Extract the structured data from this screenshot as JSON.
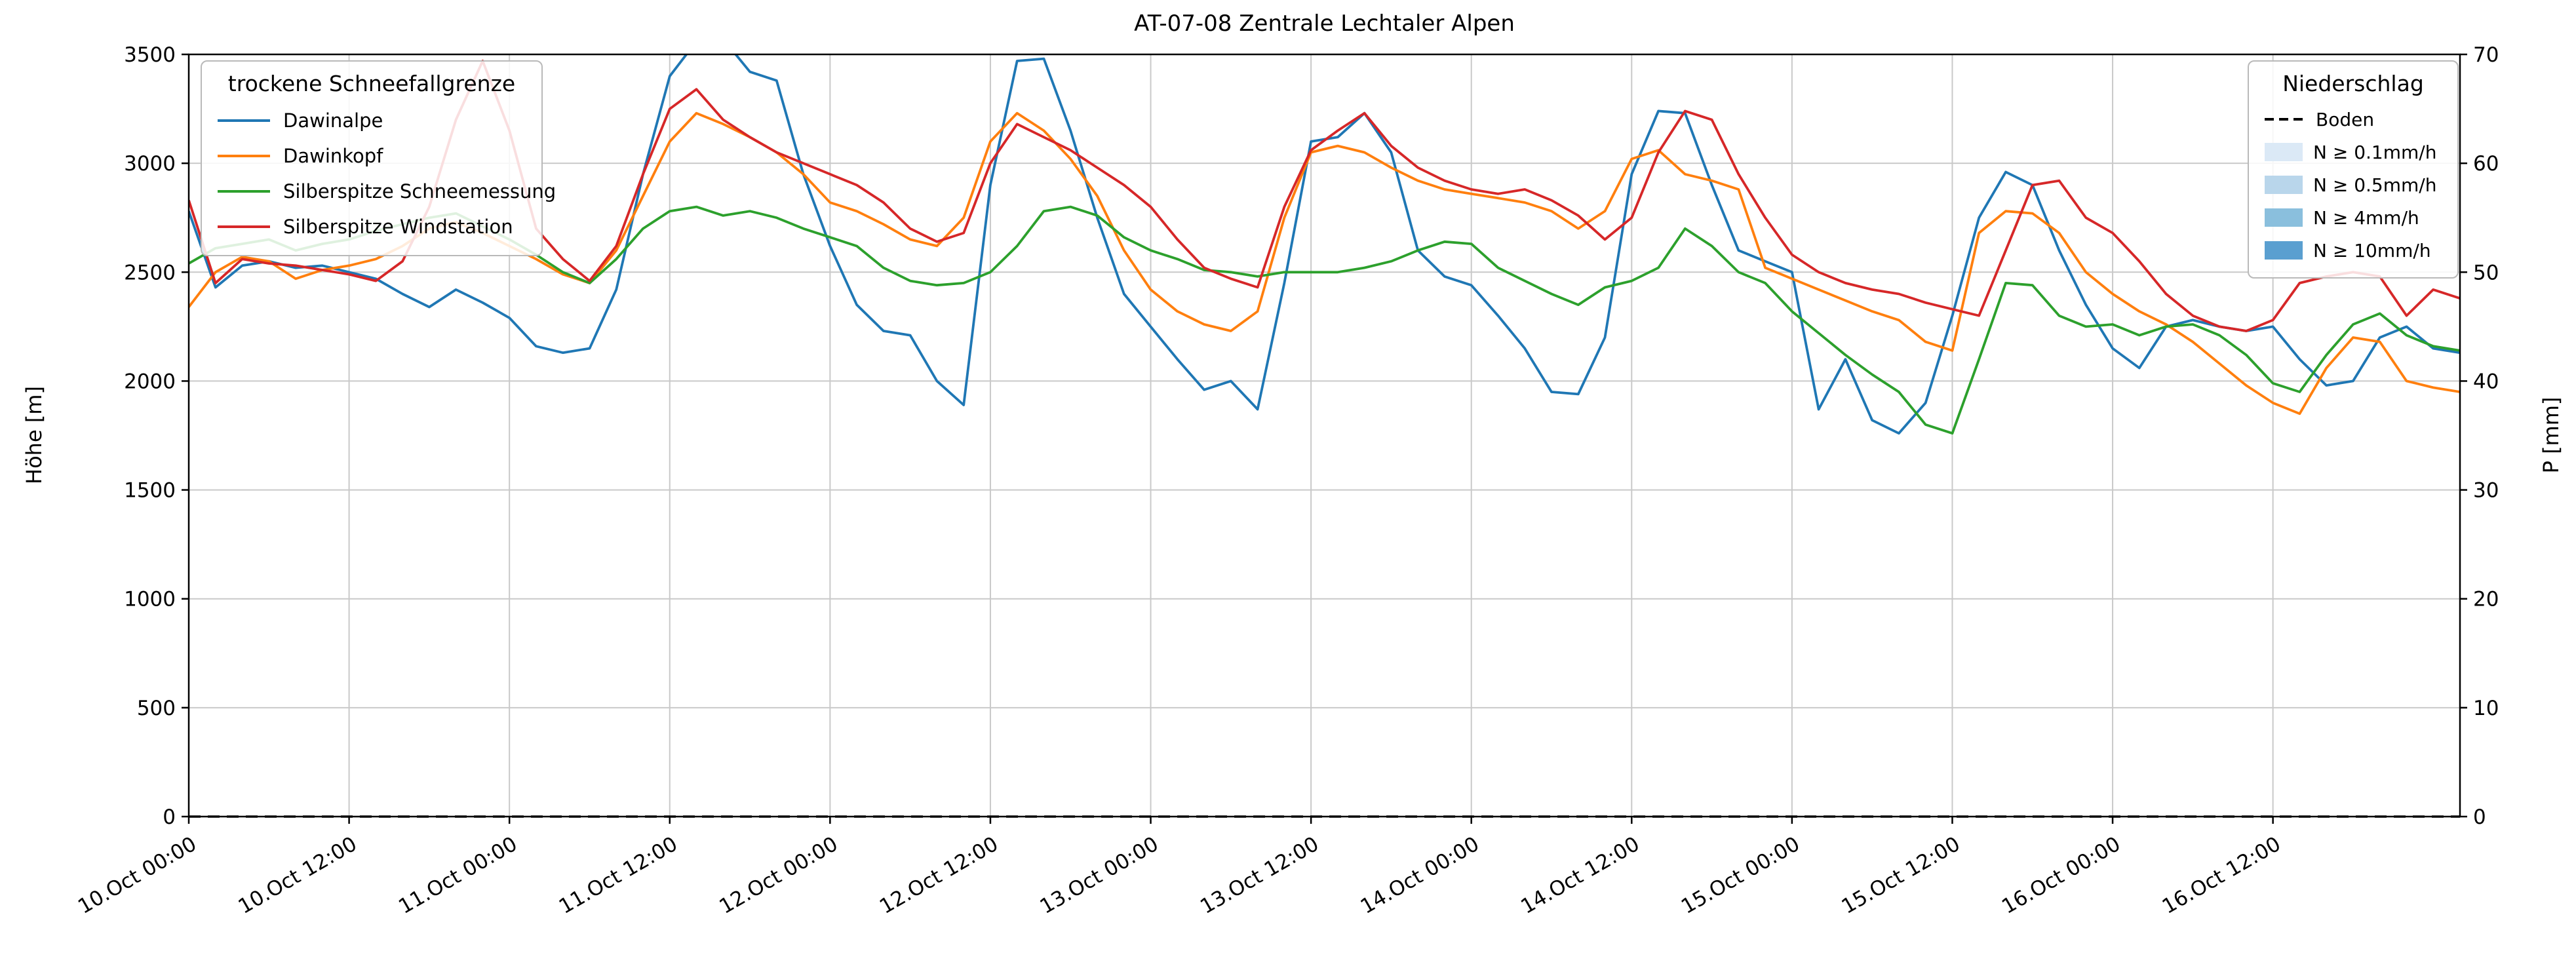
{
  "chart_data": {
    "type": "line",
    "title": "AT-07-08 Zentrale Lechtaler Alpen",
    "x_axis": {
      "range_hours": [
        0,
        170
      ],
      "tick_hours": [
        0,
        12,
        24,
        36,
        48,
        60,
        72,
        84,
        96,
        108,
        120,
        132,
        144,
        156
      ],
      "tick_labels": [
        "10.Oct 00:00",
        "10.Oct 12:00",
        "11.Oct 00:00",
        "11.Oct 12:00",
        "12.Oct 00:00",
        "12.Oct 12:00",
        "13.Oct 00:00",
        "13.Oct 12:00",
        "14.Oct 00:00",
        "14.Oct 12:00",
        "15.Oct 00:00",
        "15.Oct 12:00",
        "16.Oct 00:00",
        "16.Oct 12:00"
      ],
      "grid": true
    },
    "y_left": {
      "label": "Höhe [m]",
      "range": [
        0,
        3500
      ],
      "ticks": [
        0,
        500,
        1000,
        1500,
        2000,
        2500,
        3000,
        3500
      ]
    },
    "y_right": {
      "label": "P [mm]",
      "range": [
        0,
        70
      ],
      "ticks": [
        0,
        10,
        20,
        30,
        40,
        50,
        60,
        70
      ]
    },
    "grid_color": "#c9c9c9",
    "sample_step_hours": 2,
    "series": [
      {
        "name": "Dawinalpe",
        "color": "#1f77b4",
        "values": [
          2780,
          2430,
          2530,
          2550,
          2520,
          2530,
          2500,
          2470,
          2400,
          2340,
          2420,
          2360,
          2290,
          2160,
          2130,
          2150,
          2420,
          2950,
          3400,
          3560,
          3570,
          3420,
          3380,
          2950,
          2620,
          2350,
          2230,
          2210,
          2000,
          1890,
          2900,
          3470,
          3480,
          3150,
          2750,
          2400,
          2250,
          2100,
          1960,
          2000,
          1870,
          2450,
          3100,
          3120,
          3230,
          3050,
          2600,
          2480,
          2440,
          2300,
          2150,
          1950,
          1940,
          2200,
          2950,
          3240,
          3230,
          2900,
          2600,
          2550,
          2500,
          1870,
          2100,
          1820,
          1760,
          1900,
          2300,
          2750,
          2960,
          2900,
          2600,
          2350,
          2150,
          2060,
          2250,
          2280,
          2250,
          2230,
          2250,
          2100,
          1980,
          2000,
          2200,
          2250,
          2150,
          2130
        ]
      },
      {
        "name": "Dawinkopf",
        "color": "#ff7f0e",
        "values": [
          2340,
          2500,
          2570,
          2550,
          2470,
          2510,
          2530,
          2560,
          2620,
          2700,
          2730,
          2680,
          2620,
          2560,
          2490,
          2450,
          2600,
          2850,
          3100,
          3230,
          3180,
          3120,
          3050,
          2950,
          2820,
          2780,
          2720,
          2650,
          2620,
          2750,
          3100,
          3230,
          3150,
          3020,
          2850,
          2600,
          2420,
          2320,
          2260,
          2230,
          2320,
          2750,
          3050,
          3080,
          3050,
          2980,
          2920,
          2880,
          2860,
          2840,
          2820,
          2780,
          2700,
          2780,
          3020,
          3060,
          2950,
          2920,
          2880,
          2520,
          2470,
          2420,
          2370,
          2320,
          2280,
          2180,
          2140,
          2680,
          2780,
          2770,
          2680,
          2500,
          2400,
          2320,
          2260,
          2180,
          2080,
          1980,
          1900,
          1850,
          2060,
          2200,
          2180,
          2000,
          1970,
          1950
        ]
      },
      {
        "name": "Silberspitze Schneemessung",
        "color": "#2ca02c",
        "values": [
          2540,
          2610,
          2630,
          2650,
          2600,
          2630,
          2650,
          2690,
          2720,
          2750,
          2770,
          2710,
          2650,
          2580,
          2500,
          2450,
          2560,
          2700,
          2780,
          2800,
          2760,
          2780,
          2750,
          2700,
          2660,
          2620,
          2520,
          2460,
          2440,
          2450,
          2500,
          2620,
          2780,
          2800,
          2760,
          2660,
          2600,
          2560,
          2510,
          2500,
          2480,
          2500,
          2500,
          2500,
          2520,
          2550,
          2600,
          2640,
          2630,
          2520,
          2460,
          2400,
          2350,
          2430,
          2460,
          2520,
          2700,
          2620,
          2500,
          2450,
          2320,
          2220,
          2120,
          2030,
          1950,
          1800,
          1760,
          2100,
          2450,
          2440,
          2300,
          2250,
          2260,
          2210,
          2250,
          2260,
          2210,
          2120,
          1990,
          1950,
          2120,
          2260,
          2310,
          2210,
          2160,
          2140
        ]
      },
      {
        "name": "Silberspitze Windstation",
        "color": "#d62728",
        "values": [
          2830,
          2450,
          2560,
          2540,
          2530,
          2510,
          2490,
          2460,
          2550,
          2800,
          3200,
          3470,
          3150,
          2700,
          2560,
          2460,
          2620,
          2950,
          3250,
          3340,
          3200,
          3120,
          3050,
          3000,
          2950,
          2900,
          2820,
          2700,
          2640,
          2680,
          3000,
          3180,
          3120,
          3060,
          2980,
          2900,
          2800,
          2650,
          2520,
          2470,
          2430,
          2800,
          3060,
          3150,
          3230,
          3080,
          2980,
          2920,
          2880,
          2860,
          2880,
          2830,
          2760,
          2650,
          2750,
          3050,
          3240,
          3200,
          2950,
          2750,
          2580,
          2500,
          2450,
          2420,
          2400,
          2360,
          2330,
          2300,
          2600,
          2900,
          2920,
          2750,
          2680,
          2550,
          2400,
          2300,
          2250,
          2230,
          2280,
          2450,
          2480,
          2500,
          2480,
          2300,
          2420,
          2380
        ]
      }
    ],
    "boden": {
      "value_m": 0,
      "color": "#000000",
      "style": "dashed"
    },
    "legend_sfg": {
      "title": "trockene Schneefallgrenze"
    },
    "legend_precip": {
      "title": "Niederschlag",
      "boden_label": "Boden",
      "levels": [
        {
          "label": "N ≥ 0.1mm/h",
          "color": "#dbe9f6"
        },
        {
          "label": "N ≥ 0.5mm/h",
          "color": "#b9d6eb"
        },
        {
          "label": "N ≥ 4mm/h",
          "color": "#8abfdd"
        },
        {
          "label": "N ≥ 10mm/h",
          "color": "#5a9fd0"
        }
      ]
    }
  }
}
